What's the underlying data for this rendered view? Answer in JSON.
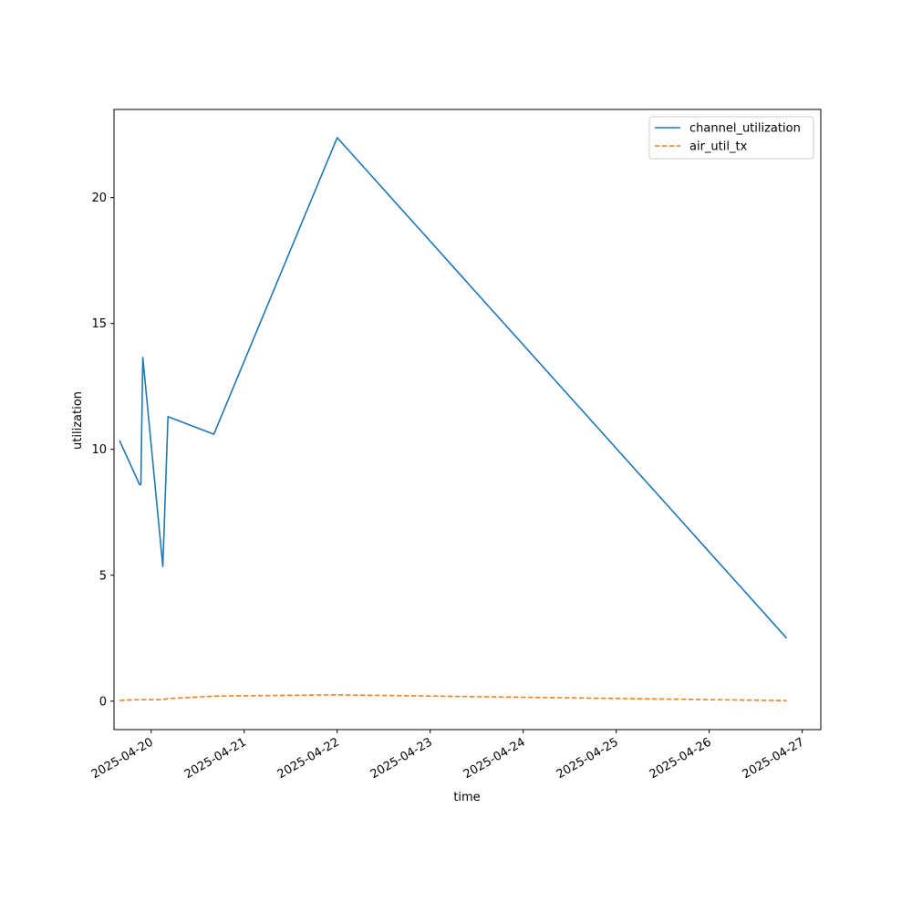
{
  "chart_data": {
    "type": "line",
    "title": "",
    "xlabel": "time",
    "ylabel": "utilization",
    "x_ticks": [
      "2025-04-20",
      "2025-04-21",
      "2025-04-22",
      "2025-04-23",
      "2025-04-24",
      "2025-04-25",
      "2025-04-26",
      "2025-04-27"
    ],
    "y_ticks": [
      0,
      5,
      10,
      15,
      20
    ],
    "xlim": [
      "2025-04-19 14:24",
      "2025-04-27 04:48"
    ],
    "ylim": [
      -1.13,
      23.5
    ],
    "grid": false,
    "legend_position": "top-right",
    "series": [
      {
        "name": "channel_utilization",
        "color": "#1f77b4",
        "style": "solid",
        "points": [
          {
            "x": "2025-04-19 15:50",
            "y": 10.35
          },
          {
            "x": "2025-04-19 21:00",
            "y": 8.6
          },
          {
            "x": "2025-04-19 21:20",
            "y": 8.6
          },
          {
            "x": "2025-04-19 21:50",
            "y": 13.65
          },
          {
            "x": "2025-04-20 03:00",
            "y": 5.35
          },
          {
            "x": "2025-04-20 04:20",
            "y": 11.3
          },
          {
            "x": "2025-04-20 16:10",
            "y": 10.6
          },
          {
            "x": "2025-04-22 00:00",
            "y": 22.38
          },
          {
            "x": "2025-04-26 20:00",
            "y": 2.5
          }
        ]
      },
      {
        "name": "air_util_tx",
        "color": "#ff7f0e",
        "style": "dashed",
        "points": [
          {
            "x": "2025-04-19 15:50",
            "y": 0.03
          },
          {
            "x": "2025-04-19 21:00",
            "y": 0.06
          },
          {
            "x": "2025-04-20 03:00",
            "y": 0.06
          },
          {
            "x": "2025-04-20 04:20",
            "y": 0.1
          },
          {
            "x": "2025-04-20 16:10",
            "y": 0.2
          },
          {
            "x": "2025-04-22 00:00",
            "y": 0.25
          },
          {
            "x": "2025-04-26 20:00",
            "y": 0.02
          }
        ]
      }
    ]
  }
}
